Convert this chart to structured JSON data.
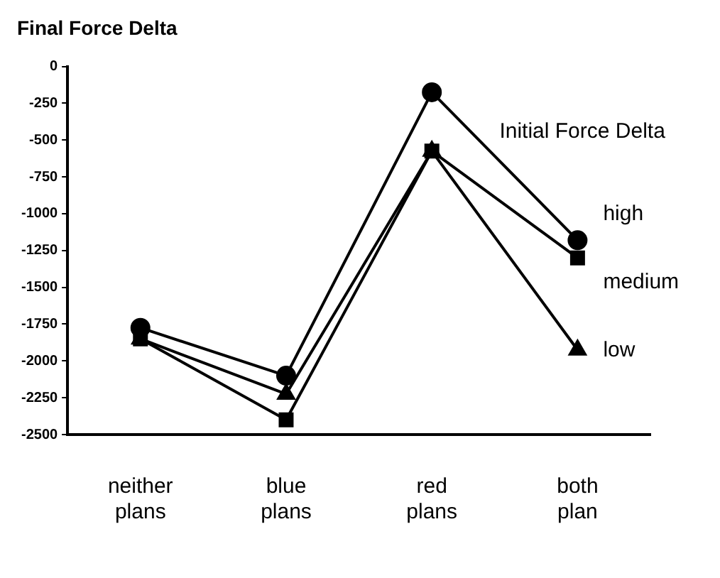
{
  "chart_data": {
    "type": "line",
    "title": "Final Force Delta",
    "legend_title": "Initial Force Delta",
    "categories": [
      "neither\nplans",
      "blue\nplans",
      "red\nplans",
      "both\nplan"
    ],
    "series": [
      {
        "name": "high",
        "color": "#000000",
        "marker": "circle",
        "values": [
          -1775,
          -2100,
          -175,
          -1180
        ]
      },
      {
        "name": "medium",
        "color": "#000000",
        "marker": "square",
        "values": [
          -1850,
          -2400,
          -575,
          -1300
        ]
      },
      {
        "name": "low",
        "color": "#000000",
        "marker": "triangle",
        "values": [
          -1850,
          -2225,
          -575,
          -1925
        ]
      }
    ],
    "ylim": [
      -2500,
      0
    ],
    "yticks": [
      0,
      -250,
      -500,
      -750,
      -1000,
      -1250,
      -1500,
      -1750,
      -2000,
      -2250,
      -2500
    ],
    "grid": false,
    "legend": "right",
    "line_style": "solid"
  }
}
